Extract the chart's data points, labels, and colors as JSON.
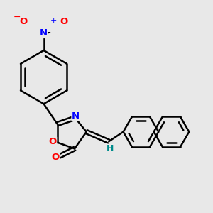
{
  "background_color": "#e8e8e8",
  "bond_color": "#000000",
  "bond_width": 1.8,
  "atom_colors": {
    "O": "#ff0000",
    "N": "#0000ff",
    "H": "#008b8b"
  },
  "figsize": [
    3.0,
    3.0
  ],
  "dpi": 100
}
